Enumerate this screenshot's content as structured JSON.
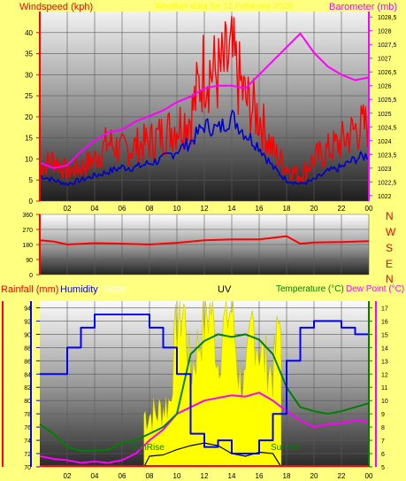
{
  "colors": {
    "page_bg": "#ffff80",
    "wind": "#ff0000",
    "gust_avg": "#0000cc",
    "barometer": "#ff00ff",
    "direction": "#ff0000",
    "humidity": "#0000ff",
    "solar": "#ffff00",
    "uv": "#000000",
    "temperature": "#008000",
    "dewpoint": "#ff00ff",
    "rain": "#ff0000",
    "axis_red": "#ff0000",
    "axis_blue": "#0000ff",
    "axis_green": "#008000",
    "axis_magenta": "#ff00ff"
  },
  "header": {
    "wind_title": "Windspeed (kph)",
    "center_title": "Weather data for 12 February 2020",
    "baro_title": "Barometer (mb)"
  },
  "legend": {
    "rainfall": "Rainfall (mm)",
    "humidity": "Humidity",
    "solar": "Solar",
    "uv": "UV",
    "temperature": "Temperature (°C)",
    "dewpoint": "Dew Point (°C)"
  },
  "annotations": {
    "sunrise": "SunRise",
    "sunset": "SunSet"
  },
  "compass": [
    "N",
    "W",
    "S",
    "E",
    "N"
  ],
  "chart_data": [
    {
      "type": "line",
      "title": "Windspeed / Barometer",
      "x_ticks": [
        "02",
        "04",
        "06",
        "08",
        "10",
        "12",
        "14",
        "16",
        "18",
        "20",
        "22",
        "00"
      ],
      "xlim": [
        0,
        24
      ],
      "ylim_left": [
        0,
        45
      ],
      "y_ticks_left": [
        "0",
        "5",
        "10",
        "15",
        "20",
        "25",
        "30",
        "35",
        "40"
      ],
      "ylim_right": [
        1021.8,
        1028.7
      ],
      "y_ticks_right": [
        "1022",
        "1022,5",
        "1023",
        "1023,5",
        "1024",
        "1024,5",
        "1025",
        "1025,5",
        "1026",
        "1026,5",
        "1027",
        "1027,5",
        "1028",
        "1028,5"
      ],
      "series": [
        {
          "name": "Windspeed",
          "axis": "left",
          "x": [
            0,
            1,
            2,
            3,
            4,
            5,
            6,
            7,
            8,
            9,
            10,
            11,
            12,
            13,
            14,
            15,
            16,
            17,
            18,
            19,
            20,
            21,
            22,
            23,
            24
          ],
          "values": [
            8,
            10,
            7,
            8,
            10,
            14,
            12,
            13,
            14,
            16,
            18,
            20,
            32,
            30,
            34,
            24,
            20,
            12,
            8,
            6,
            10,
            12,
            14,
            17,
            18
          ]
        },
        {
          "name": "Average",
          "axis": "left",
          "x": [
            0,
            1,
            2,
            3,
            4,
            5,
            6,
            7,
            8,
            9,
            10,
            11,
            12,
            13,
            14,
            15,
            16,
            17,
            18,
            19,
            20,
            21,
            22,
            23,
            24
          ],
          "values": [
            6,
            5,
            4,
            5,
            6,
            7,
            8,
            8,
            9,
            10,
            12,
            14,
            18,
            17,
            20,
            16,
            13,
            8,
            5,
            4,
            5,
            7,
            8,
            10,
            11
          ]
        },
        {
          "name": "Barometer",
          "axis": "right",
          "x": [
            0,
            1,
            2,
            3,
            4,
            5,
            6,
            7,
            8,
            9,
            10,
            11,
            12,
            13,
            14,
            15,
            16,
            17,
            18,
            19,
            20,
            21,
            22,
            23,
            24
          ],
          "values": [
            1023.2,
            1023.0,
            1023.1,
            1023.6,
            1024.0,
            1024.3,
            1024.4,
            1024.7,
            1024.9,
            1025.1,
            1025.4,
            1025.6,
            1025.9,
            1026.0,
            1026.0,
            1025.9,
            1026.4,
            1026.9,
            1027.4,
            1027.9,
            1027.2,
            1026.7,
            1026.4,
            1026.2,
            1026.3
          ]
        }
      ]
    },
    {
      "type": "line",
      "title": "Wind direction",
      "xlim": [
        0,
        24
      ],
      "ylim": [
        0,
        360
      ],
      "y_ticks": [
        "0",
        "90",
        "180",
        "270",
        "360"
      ],
      "series": [
        {
          "name": "Direction",
          "x": [
            0,
            1,
            2,
            4,
            6,
            8,
            10,
            12,
            14,
            16,
            18,
            19,
            20,
            22,
            24
          ],
          "values": [
            205,
            198,
            180,
            188,
            185,
            180,
            190,
            205,
            210,
            210,
            230,
            185,
            192,
            195,
            200
          ]
        }
      ]
    },
    {
      "type": "line",
      "title": "Humidity / Temperature / Solar / UV",
      "xlim": [
        0,
        24
      ],
      "y_ticks_humidity": [
        "70",
        "72",
        "74",
        "76",
        "78",
        "80",
        "82",
        "84",
        "86",
        "88",
        "90",
        "92",
        "94"
      ],
      "ylim_humidity": [
        70,
        95
      ],
      "y_ticks_temp": [
        "5",
        "6",
        "7",
        "8",
        "9",
        "10",
        "11",
        "12",
        "13",
        "14",
        "15",
        "16",
        "17"
      ],
      "ylim_temp": [
        5,
        17.5
      ],
      "series": [
        {
          "name": "Humidity",
          "axis": "humidity",
          "x": [
            0,
            1,
            2,
            3,
            4,
            5,
            6,
            7,
            8,
            9,
            10,
            11,
            12,
            13,
            14,
            15,
            16,
            17,
            18,
            19,
            20,
            21,
            22,
            23,
            24
          ],
          "values": [
            84,
            84,
            88,
            91,
            93,
            93,
            93,
            93,
            91,
            88,
            84,
            75,
            73,
            74,
            72,
            72,
            74,
            78,
            86,
            91,
            92,
            92,
            91,
            90,
            90
          ]
        },
        {
          "name": "Temperature",
          "axis": "temp",
          "x": [
            0,
            1,
            2,
            3,
            4,
            5,
            6,
            7,
            8,
            9,
            10,
            11,
            12,
            13,
            14,
            15,
            16,
            17,
            18,
            19,
            20,
            21,
            22,
            23,
            24
          ],
          "values": [
            8.2,
            7.5,
            6.5,
            6.2,
            6.2,
            6.3,
            6.8,
            7.0,
            7.5,
            8.0,
            9.0,
            13.5,
            14.5,
            15.0,
            14.8,
            15.0,
            14.6,
            13.5,
            11.0,
            9.5,
            9.2,
            9.0,
            9.2,
            9.5,
            9.8
          ]
        },
        {
          "name": "Dew Point",
          "axis": "temp",
          "x": [
            0,
            1,
            2,
            3,
            4,
            5,
            6,
            7,
            8,
            9,
            10,
            11,
            12,
            13,
            14,
            15,
            16,
            17,
            18,
            19,
            20,
            21,
            22,
            23,
            24
          ],
          "values": [
            5.8,
            5.6,
            5.5,
            5.3,
            5.4,
            5.3,
            5.5,
            6.0,
            7.0,
            7.8,
            9.0,
            9.5,
            10.0,
            10.2,
            10.4,
            10.3,
            10.6,
            10.0,
            9.2,
            8.5,
            8.0,
            8.2,
            8.3,
            8.5,
            8.4
          ]
        },
        {
          "name": "Solar",
          "axis": "temp",
          "x": [
            7.6,
            8.5,
            9.5,
            10,
            10.5,
            11,
            11.5,
            12,
            12.5,
            13,
            13.5,
            14,
            14.5,
            15,
            15.5,
            16,
            16.5,
            17,
            17.6
          ],
          "values": [
            9,
            9,
            10,
            16,
            17,
            12,
            14,
            16,
            17,
            13,
            16,
            17,
            12,
            11,
            16,
            14,
            13,
            12,
            17
          ]
        },
        {
          "name": "UV",
          "axis": "temp",
          "x": [
            7.6,
            8,
            9,
            10,
            11,
            12,
            13,
            14,
            15,
            16,
            17,
            17.6
          ],
          "values": [
            5,
            5.8,
            5.9,
            6.3,
            6.6,
            6.8,
            6.6,
            6.0,
            5.8,
            6.1,
            6.0,
            5
          ]
        }
      ]
    }
  ]
}
